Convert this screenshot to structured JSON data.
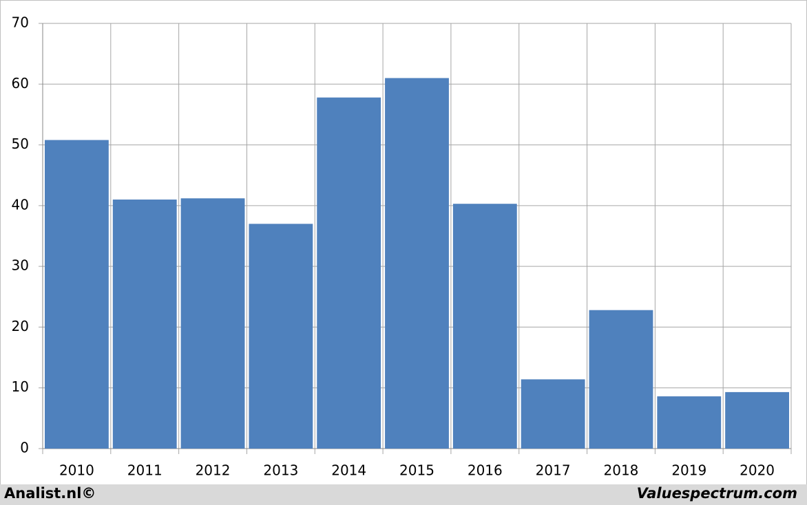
{
  "chart_data": {
    "type": "bar",
    "categories": [
      "2010",
      "2011",
      "2012",
      "2013",
      "2014",
      "2015",
      "2016",
      "2017",
      "2018",
      "2019",
      "2020"
    ],
    "values": [
      50.8,
      41,
      41.2,
      37,
      57.8,
      61,
      40.3,
      11.4,
      22.8,
      8.6,
      9.3
    ],
    "color": "#4f81bd",
    "ylim": [
      0,
      70
    ],
    "yticks": [
      0,
      10,
      20,
      30,
      40,
      50,
      60,
      70
    ],
    "grid": true,
    "annotations": [
      "Analist.nl©",
      "Valuespectrum.com"
    ]
  }
}
